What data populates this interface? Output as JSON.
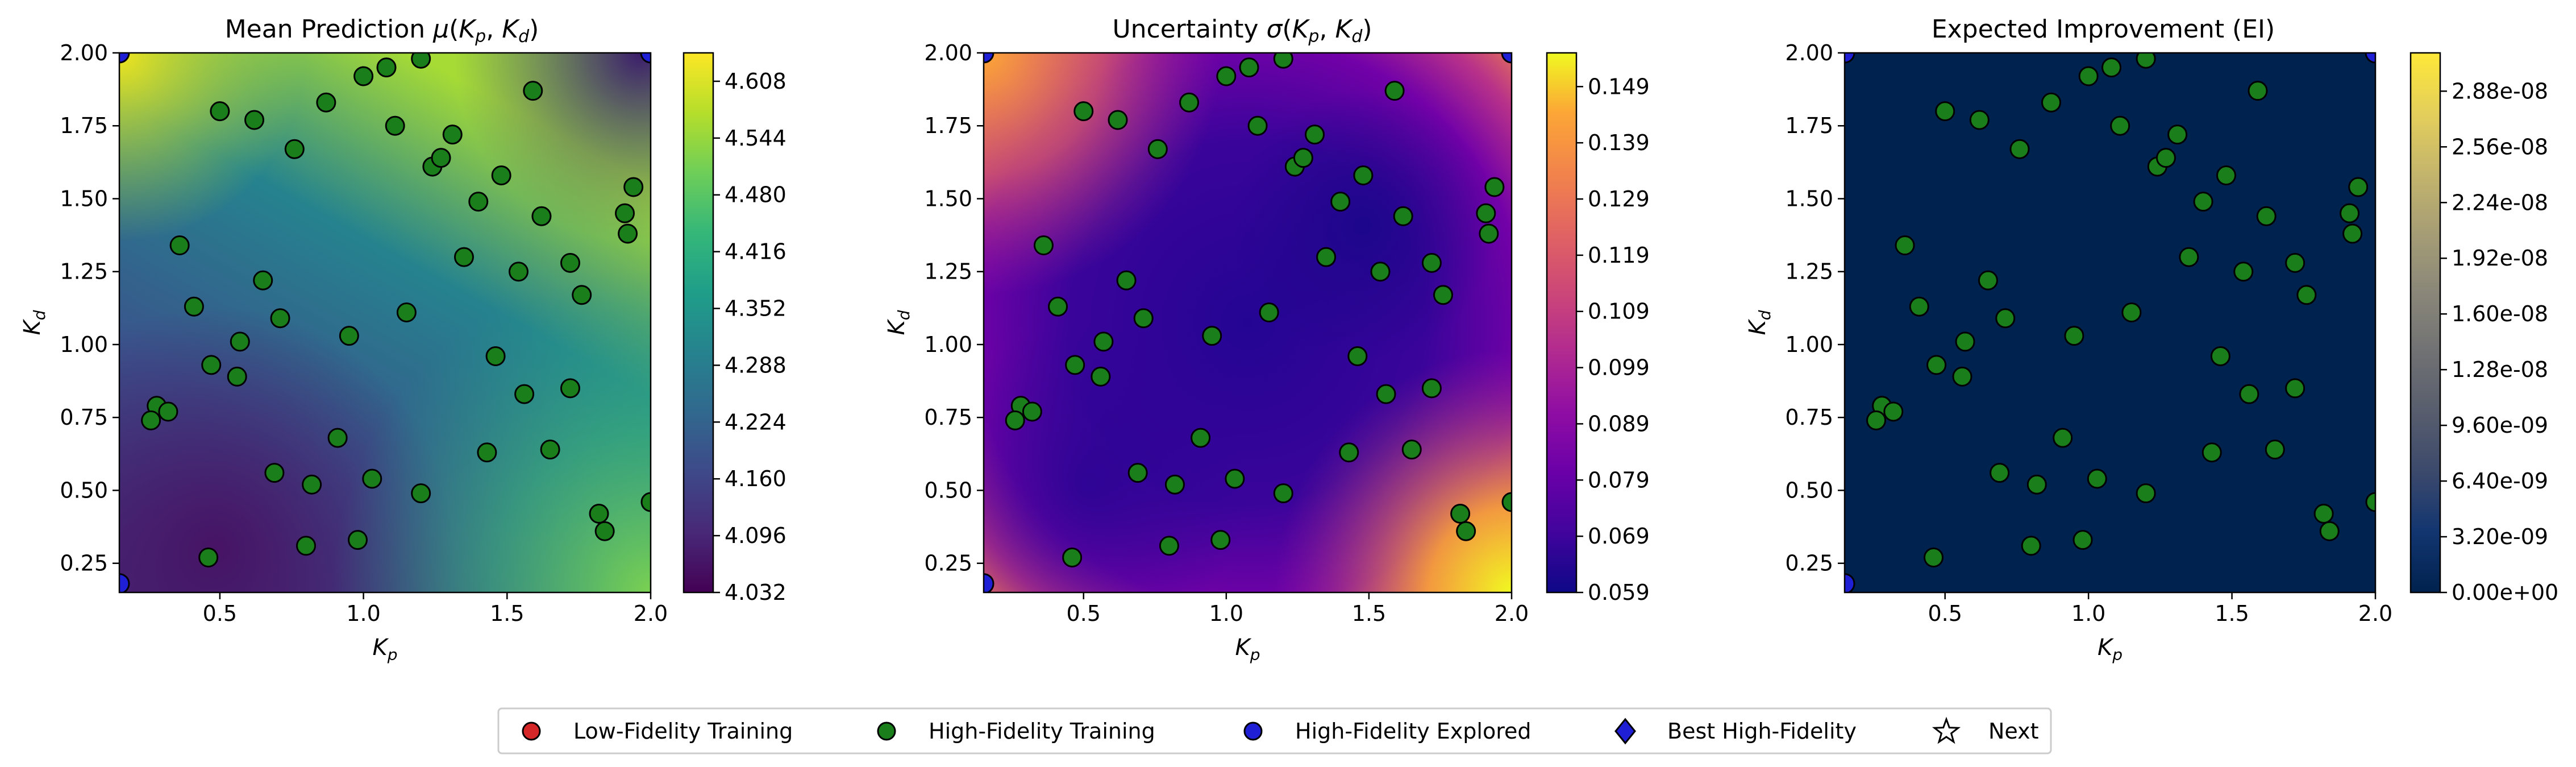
{
  "chart_data": [
    {
      "type": "heatmap",
      "title": "Mean Prediction μ(Kp, Kd)",
      "title_main": "Mean Prediction ",
      "title_sym": "μ",
      "xlabel": "Kp",
      "ylabel": "Kd",
      "xlim": [
        0.15,
        2.0
      ],
      "ylim": [
        0.15,
        2.0
      ],
      "x_ticks": [
        "0.5",
        "1.0",
        "1.5",
        "2.0"
      ],
      "y_ticks": [
        "0.25",
        "0.50",
        "0.75",
        "1.00",
        "1.25",
        "1.50",
        "1.75",
        "2.00"
      ],
      "colormap": "viridis",
      "colorbar_range": [
        4.032,
        4.64
      ],
      "colorbar_ticks": [
        "4.032",
        "4.096",
        "4.160",
        "4.224",
        "4.288",
        "4.352",
        "4.416",
        "4.480",
        "4.544",
        "4.608"
      ]
    },
    {
      "type": "heatmap",
      "title": "Uncertainty σ(Kp, Kd)",
      "title_main": "Uncertainty ",
      "title_sym": "σ",
      "xlabel": "Kp",
      "ylabel": "Kd",
      "xlim": [
        0.15,
        2.0
      ],
      "ylim": [
        0.15,
        2.0
      ],
      "x_ticks": [
        "0.5",
        "1.0",
        "1.5",
        "2.0"
      ],
      "y_ticks": [
        "0.25",
        "0.50",
        "0.75",
        "1.00",
        "1.25",
        "1.50",
        "1.75",
        "2.00"
      ],
      "colormap": "plasma",
      "colorbar_range": [
        0.059,
        0.155
      ],
      "colorbar_ticks": [
        "0.059",
        "0.069",
        "0.079",
        "0.089",
        "0.099",
        "0.109",
        "0.119",
        "0.129",
        "0.139",
        "0.149"
      ]
    },
    {
      "type": "heatmap",
      "title": "Expected Improvement (EI)",
      "xlabel": "Kp",
      "ylabel": "Kd",
      "xlim": [
        0.15,
        2.0
      ],
      "ylim": [
        0.15,
        2.0
      ],
      "x_ticks": [
        "0.5",
        "1.0",
        "1.5",
        "2.0"
      ],
      "y_ticks": [
        "0.25",
        "0.50",
        "0.75",
        "1.00",
        "1.25",
        "1.50",
        "1.75",
        "2.00"
      ],
      "colormap": "cividis",
      "colorbar_range": [
        0,
        3.1e-08
      ],
      "colorbar_ticks": [
        "0.00e+00",
        "3.20e-09",
        "6.40e-09",
        "9.60e-09",
        "1.28e-08",
        "1.60e-08",
        "1.92e-08",
        "2.24e-08",
        "2.56e-08",
        "2.88e-08"
      ]
    }
  ],
  "high_fidelity_points": [
    [
      0.5,
      1.8
    ],
    [
      0.62,
      1.77
    ],
    [
      0.76,
      1.67
    ],
    [
      0.87,
      1.83
    ],
    [
      1.0,
      1.92
    ],
    [
      1.08,
      1.95
    ],
    [
      1.2,
      1.98
    ],
    [
      1.11,
      1.75
    ],
    [
      1.24,
      1.61
    ],
    [
      1.27,
      1.64
    ],
    [
      1.31,
      1.72
    ],
    [
      1.48,
      1.58
    ],
    [
      1.59,
      1.87
    ],
    [
      1.4,
      1.49
    ],
    [
      1.62,
      1.44
    ],
    [
      1.91,
      1.45
    ],
    [
      1.94,
      1.54
    ],
    [
      1.92,
      1.38
    ],
    [
      1.35,
      1.3
    ],
    [
      1.54,
      1.25
    ],
    [
      1.72,
      1.28
    ],
    [
      1.76,
      1.17
    ],
    [
      0.36,
      1.34
    ],
    [
      0.65,
      1.22
    ],
    [
      0.41,
      1.13
    ],
    [
      0.71,
      1.09
    ],
    [
      1.15,
      1.11
    ],
    [
      0.95,
      1.03
    ],
    [
      0.57,
      1.01
    ],
    [
      1.46,
      0.96
    ],
    [
      0.47,
      0.93
    ],
    [
      0.56,
      0.89
    ],
    [
      1.56,
      0.83
    ],
    [
      1.72,
      0.85
    ],
    [
      0.28,
      0.79
    ],
    [
      0.32,
      0.77
    ],
    [
      0.26,
      0.74
    ],
    [
      0.91,
      0.68
    ],
    [
      1.43,
      0.63
    ],
    [
      1.65,
      0.64
    ],
    [
      0.69,
      0.56
    ],
    [
      0.82,
      0.52
    ],
    [
      1.03,
      0.54
    ],
    [
      1.2,
      0.49
    ],
    [
      2.0,
      0.46
    ],
    [
      1.82,
      0.42
    ],
    [
      1.84,
      0.36
    ],
    [
      0.8,
      0.31
    ],
    [
      0.98,
      0.33
    ],
    [
      0.46,
      0.27
    ]
  ],
  "blue_corner_points": [
    [
      0.15,
      2.0
    ],
    [
      0.15,
      0.18
    ],
    [
      2.0,
      2.0
    ]
  ],
  "legend": {
    "items": [
      {
        "label": "Low-Fidelity Training",
        "marker": "circle",
        "color": "#d62728"
      },
      {
        "label": "High-Fidelity Training",
        "marker": "circle",
        "color": "#1a7f1a"
      },
      {
        "label": "High-Fidelity Explored",
        "marker": "circle",
        "color": "#1f1fd6"
      },
      {
        "label": "Best High-Fidelity",
        "marker": "diamond",
        "color": "#1f1fd6"
      },
      {
        "label": "Next",
        "marker": "star",
        "color": "#ffffff"
      }
    ]
  }
}
